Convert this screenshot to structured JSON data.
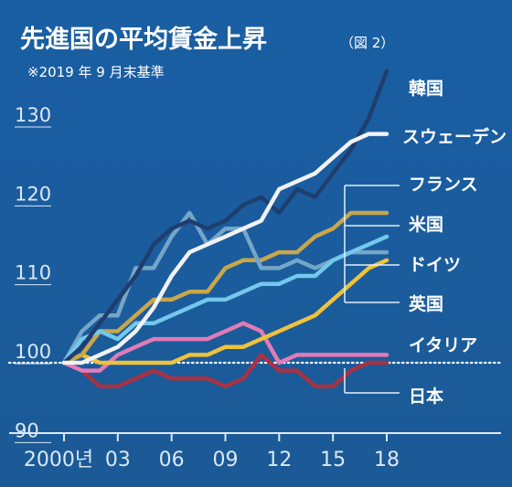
{
  "chart_data": {
    "type": "line",
    "title": "先進国の平均賃金上昇",
    "figure_label": "（図 2）",
    "subtitle": "※2019 年 9 月末基準",
    "x": [
      2000,
      2001,
      2002,
      2003,
      2004,
      2005,
      2006,
      2007,
      2008,
      2009,
      2010,
      2011,
      2012,
      2013,
      2014,
      2015,
      2016,
      2017,
      2018
    ],
    "x_tick_labels": [
      "2000년",
      "03",
      "06",
      "09",
      "12",
      "15",
      "18"
    ],
    "y_tick_labels": [
      "90",
      "100",
      "110",
      "120",
      "130"
    ],
    "ylim": [
      88,
      138
    ],
    "baseline": 100,
    "series": [
      {
        "name": "韓国",
        "color": "#1f3e6e",
        "values": [
          100,
          102,
          105,
          108,
          111,
          115,
          117,
          118,
          117,
          118,
          120,
          121,
          119,
          122,
          121,
          124,
          127,
          131,
          137
        ]
      },
      {
        "name": "スウェーデン",
        "color": "#f2f2f4",
        "values": [
          100,
          100,
          101,
          102,
          104,
          107,
          111,
          114,
          115,
          116,
          117,
          118,
          122,
          123,
          124,
          126,
          128,
          129,
          129
        ]
      },
      {
        "name": "フランス",
        "color": "#74a6c9",
        "values": [
          100,
          104,
          106,
          106,
          112,
          112,
          116,
          119,
          115,
          117,
          117,
          112,
          112,
          113,
          112,
          113,
          114,
          114,
          114
        ]
      },
      {
        "name": "米国",
        "color": "#c9a64a",
        "values": [
          100,
          101,
          104,
          104,
          106,
          108,
          108,
          109,
          109,
          112,
          113,
          113,
          114,
          114,
          116,
          117,
          119,
          119,
          119
        ]
      },
      {
        "name": "ドイツ",
        "color": "#f0c23a",
        "values": [
          100,
          101,
          100,
          100,
          100,
          100,
          100,
          101,
          101,
          102,
          102,
          103,
          104,
          105,
          106,
          108,
          110,
          112,
          113
        ]
      },
      {
        "name": "英国",
        "color": "#73c8ec",
        "values": [
          100,
          103,
          104,
          103,
          105,
          105,
          106,
          107,
          108,
          108,
          109,
          110,
          110,
          111,
          111,
          113,
          114,
          115,
          116
        ]
      },
      {
        "name": "イタリア",
        "color": "#e27bb6",
        "values": [
          100,
          99,
          99,
          101,
          102,
          103,
          103,
          103,
          103,
          104,
          105,
          104,
          100,
          101,
          101,
          101,
          101,
          101,
          101
        ]
      },
      {
        "name": "日本",
        "color": "#a83244",
        "values": [
          100,
          99,
          97,
          97,
          98,
          99,
          98,
          98,
          98,
          97,
          98,
          101,
          99,
          99,
          97,
          97,
          99,
          100,
          100
        ]
      }
    ]
  }
}
